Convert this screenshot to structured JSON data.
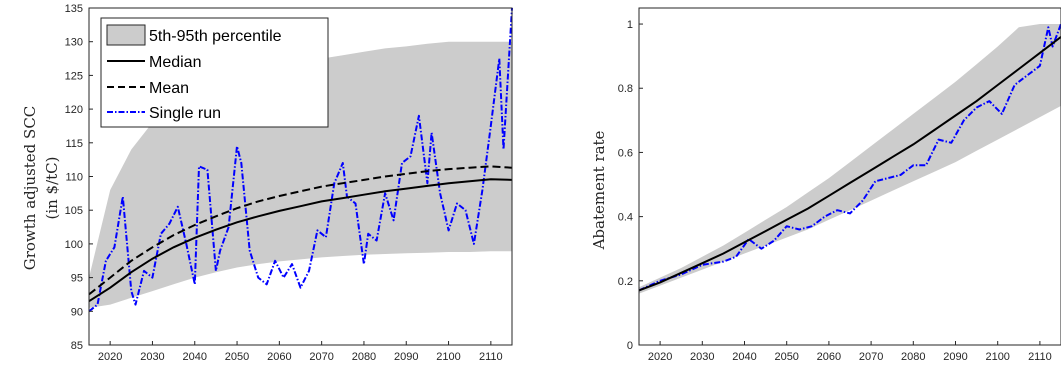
{
  "chart_data": [
    {
      "type": "line",
      "title": "",
      "xlabel": "",
      "ylabel": [
        "Growth adjusted SCC",
        "(in $/tC)"
      ],
      "xlim": [
        2015,
        2115
      ],
      "ylim": [
        85,
        135
      ],
      "xticks": [
        2020,
        2030,
        2040,
        2050,
        2060,
        2070,
        2080,
        2090,
        2100,
        2110
      ],
      "yticks": [
        85,
        90,
        95,
        100,
        105,
        110,
        115,
        120,
        125,
        130,
        135
      ],
      "legend_position": "top-left",
      "legend": [
        "5th-95th percentile",
        "Median",
        "Mean",
        "Single run"
      ],
      "colors": {
        "band": "#cccccc",
        "median": "#000000",
        "mean": "#000000",
        "single": "#0000ff"
      },
      "x": [
        2015,
        2020,
        2025,
        2030,
        2035,
        2040,
        2045,
        2050,
        2055,
        2060,
        2065,
        2070,
        2075,
        2080,
        2085,
        2090,
        2095,
        2100,
        2105,
        2110,
        2115
      ],
      "series": [
        {
          "name": "5th-95th percentile",
          "kind": "band",
          "lower": [
            90.5,
            91,
            92,
            93,
            94,
            95,
            95.8,
            96.5,
            97,
            97.4,
            97.7,
            98,
            98.2,
            98.4,
            98.5,
            98.6,
            98.7,
            98.8,
            98.8,
            98.9,
            98.9
          ],
          "upper": [
            95,
            108,
            114,
            118,
            121,
            122.5,
            123.5,
            124.5,
            125.2,
            126,
            126.7,
            127.5,
            128,
            128.5,
            129,
            129.3,
            129.7,
            130,
            130,
            130,
            130
          ]
        },
        {
          "name": "Median",
          "kind": "solid",
          "values": [
            91.5,
            93.5,
            95.8,
            97.8,
            99.5,
            100.9,
            102.1,
            103.2,
            104.1,
            104.9,
            105.6,
            106.3,
            106.8,
            107.3,
            107.8,
            108.2,
            108.6,
            109,
            109.3,
            109.6,
            109.5
          ]
        },
        {
          "name": "Mean",
          "kind": "dashed",
          "values": [
            92.5,
            95,
            97.5,
            99.5,
            101.3,
            102.8,
            104.1,
            105.3,
            106.3,
            107.1,
            107.8,
            108.5,
            109,
            109.5,
            110,
            110.4,
            110.8,
            111.1,
            111.3,
            111.5,
            111.3
          ]
        }
      ],
      "single_run": {
        "name": "Single run",
        "x": [
          2015,
          2017,
          2019,
          2021,
          2023,
          2025,
          2026,
          2028,
          2030,
          2032,
          2034,
          2036,
          2038,
          2040,
          2041,
          2043,
          2045,
          2046,
          2048,
          2050,
          2051,
          2053,
          2055,
          2057,
          2059,
          2061,
          2063,
          2065,
          2067,
          2069,
          2071,
          2073,
          2075,
          2076,
          2078,
          2080,
          2081,
          2083,
          2085,
          2087,
          2089,
          2091,
          2093,
          2095,
          2096,
          2098,
          2100,
          2102,
          2104,
          2106,
          2108,
          2110,
          2112,
          2113,
          2115
        ],
        "values": [
          90,
          91,
          97.5,
          99.5,
          107,
          93,
          91,
          96,
          95,
          101.5,
          103,
          105.5,
          100,
          94,
          111.5,
          111,
          96,
          99,
          102.5,
          114.5,
          112,
          99,
          95,
          94,
          97.5,
          95,
          97,
          93.5,
          96,
          102,
          101,
          109,
          112,
          107,
          106,
          97,
          101.5,
          100.5,
          107.5,
          103.5,
          112,
          113,
          119,
          109,
          116.5,
          107.5,
          102,
          106,
          105,
          100,
          108,
          117.5,
          127.5,
          114,
          135
        ]
      }
    },
    {
      "type": "line",
      "title": "",
      "xlabel": "",
      "ylabel": "Abatement rate",
      "xlim": [
        2015,
        2115
      ],
      "ylim": [
        0,
        1.05
      ],
      "xticks": [
        2020,
        2030,
        2040,
        2050,
        2060,
        2070,
        2080,
        2090,
        2100,
        2110
      ],
      "yticks": [
        0,
        0.2,
        0.4,
        0.6,
        0.8,
        1
      ],
      "ytick_labels": [
        "0",
        "0.2",
        "0.4",
        "0.6",
        "0.8",
        "1"
      ],
      "x": [
        2015,
        2020,
        2025,
        2030,
        2035,
        2040,
        2045,
        2050,
        2055,
        2060,
        2065,
        2070,
        2075,
        2080,
        2085,
        2090,
        2095,
        2100,
        2105,
        2110,
        2115
      ],
      "series": [
        {
          "name": "5th-95th percentile",
          "kind": "band",
          "lower": [
            0.16,
            0.185,
            0.21,
            0.235,
            0.26,
            0.285,
            0.31,
            0.335,
            0.36,
            0.39,
            0.42,
            0.45,
            0.48,
            0.51,
            0.54,
            0.57,
            0.605,
            0.64,
            0.675,
            0.71,
            0.745
          ],
          "upper": [
            0.18,
            0.21,
            0.24,
            0.275,
            0.31,
            0.35,
            0.39,
            0.43,
            0.475,
            0.52,
            0.57,
            0.62,
            0.67,
            0.72,
            0.77,
            0.82,
            0.875,
            0.93,
            0.99,
            1,
            1
          ]
        },
        {
          "name": "Median",
          "kind": "solid",
          "values": [
            0.17,
            0.195,
            0.225,
            0.255,
            0.285,
            0.32,
            0.355,
            0.39,
            0.425,
            0.465,
            0.505,
            0.545,
            0.585,
            0.625,
            0.67,
            0.715,
            0.76,
            0.81,
            0.86,
            0.91,
            0.96
          ]
        }
      ],
      "single_run": {
        "name": "Single run",
        "x": [
          2015,
          2020,
          2025,
          2030,
          2035,
          2038,
          2041,
          2044,
          2047,
          2050,
          2053,
          2056,
          2059,
          2062,
          2065,
          2068,
          2071,
          2074,
          2077,
          2080,
          2083,
          2086,
          2089,
          2092,
          2095,
          2098,
          2101,
          2104,
          2107,
          2110,
          2112,
          2113,
          2115
        ],
        "values": [
          0.17,
          0.2,
          0.22,
          0.25,
          0.26,
          0.275,
          0.33,
          0.3,
          0.325,
          0.37,
          0.36,
          0.37,
          0.4,
          0.42,
          0.41,
          0.45,
          0.51,
          0.52,
          0.53,
          0.56,
          0.56,
          0.64,
          0.63,
          0.7,
          0.74,
          0.76,
          0.72,
          0.81,
          0.84,
          0.87,
          0.99,
          0.93,
          1
        ]
      }
    }
  ]
}
